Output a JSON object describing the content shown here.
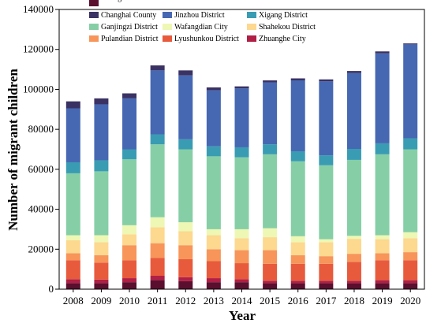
{
  "chart_data": {
    "type": "bar",
    "stacked": true,
    "title": "",
    "xlabel": "Year",
    "ylabel": "Number of migrant children",
    "ylim": [
      0,
      140000
    ],
    "yticks": [
      0,
      20000,
      40000,
      60000,
      80000,
      100000,
      120000,
      140000
    ],
    "ytick_labels": [
      "0",
      "20000",
      "40000",
      "60000",
      "80000",
      "100000",
      "120000",
      "140000"
    ],
    "categories": [
      "2008",
      "2009",
      "2010",
      "2011",
      "2012",
      "2013",
      "2014",
      "2015",
      "2016",
      "2017",
      "2018",
      "2019",
      "2020"
    ],
    "grid": false,
    "legend_position": "top",
    "series": [
      {
        "name": "Zhongshan District",
        "color": "#5a0f2e",
        "values": [
          3000,
          3000,
          3500,
          4500,
          4000,
          3500,
          3500,
          3000,
          3000,
          3000,
          3000,
          3000,
          3000
        ]
      },
      {
        "name": "Zhuanghe City",
        "color": "#b01f45",
        "values": [
          2000,
          1800,
          2000,
          2200,
          2000,
          2000,
          1500,
          1200,
          1200,
          1200,
          1200,
          1500,
          1500
        ]
      },
      {
        "name": "Lyushunkou District",
        "color": "#e85a3c",
        "values": [
          9500,
          8500,
          9000,
          9000,
          9000,
          8500,
          8000,
          8500,
          8500,
          8500,
          9500,
          10000,
          10000
        ]
      },
      {
        "name": "Pulandian District",
        "color": "#f7955a",
        "values": [
          3500,
          3700,
          7500,
          7300,
          7000,
          6000,
          6500,
          6800,
          4300,
          3800,
          4000,
          3500,
          4000
        ]
      },
      {
        "name": "Shahekou District",
        "color": "#fdd88f",
        "values": [
          6500,
          6500,
          5500,
          8000,
          7000,
          7000,
          6000,
          6500,
          6500,
          7000,
          7500,
          7000,
          7000
        ]
      },
      {
        "name": "Wafangdian City",
        "color": "#eef7b4",
        "values": [
          2500,
          3500,
          4500,
          5000,
          4500,
          3000,
          4500,
          4500,
          3000,
          1500,
          1500,
          2000,
          3000
        ]
      },
      {
        "name": "Ganjingzi District",
        "color": "#86cfa6",
        "values": [
          31000,
          32000,
          33000,
          36500,
          36500,
          36500,
          36000,
          37000,
          37500,
          37000,
          38000,
          40500,
          41500
        ]
      },
      {
        "name": "Xigang District",
        "color": "#3a9cb3",
        "values": [
          5500,
          5500,
          5000,
          5000,
          5000,
          5000,
          5000,
          5000,
          5000,
          5000,
          5500,
          5500,
          5500
        ]
      },
      {
        "name": "Jinzhou District",
        "color": "#4668b3",
        "values": [
          27000,
          28000,
          25500,
          32000,
          32000,
          28000,
          29500,
          31000,
          35500,
          37000,
          38000,
          45000,
          47000
        ]
      },
      {
        "name": "Changhai County",
        "color": "#3b3264",
        "values": [
          3500,
          3000,
          2500,
          2500,
          2500,
          1500,
          1000,
          1000,
          1000,
          1000,
          1000,
          1000,
          500
        ]
      }
    ],
    "legend_order": [
      "Changhai County",
      "Jinzhou District",
      "Xigang District",
      "Ganjingzi District",
      "Wafangdian City",
      "Shahekou District",
      "Pulandian District",
      "Lyushunkou District",
      "Zhuanghe City",
      "Zhongshan District"
    ]
  }
}
